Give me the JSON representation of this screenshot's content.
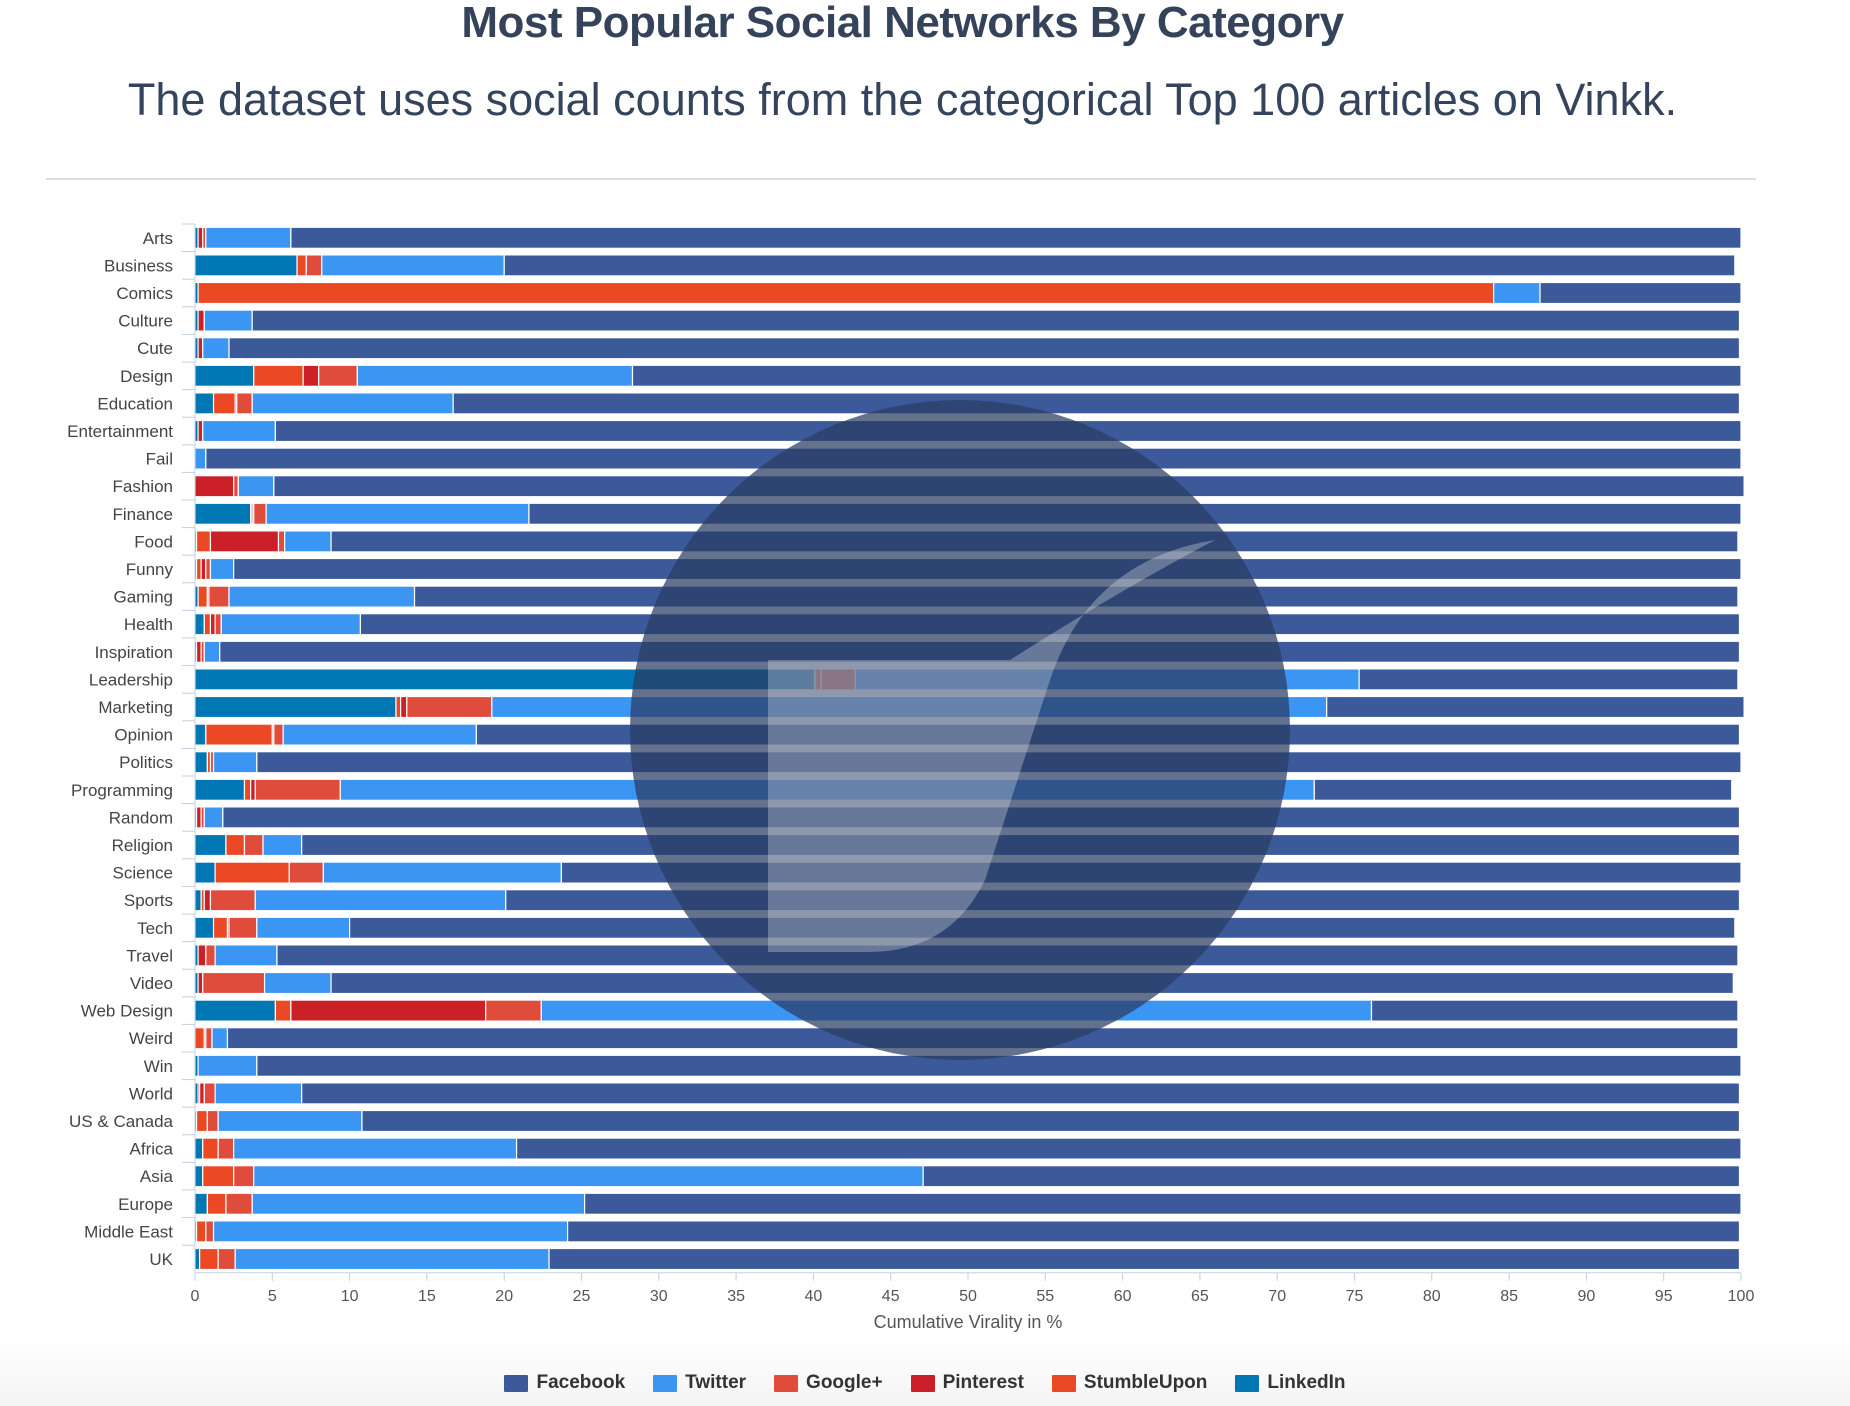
{
  "chart_data": {
    "type": "bar",
    "orientation": "horizontal",
    "stacked": true,
    "title": "Most Popular Social Networks By Category",
    "subtitle": "The dataset uses social counts from the categorical Top 100 articles on Vinkk.",
    "xlabel": "Cumulative Virality in %",
    "ylabel": "",
    "xlim": [
      0,
      100
    ],
    "x_ticks": [
      0,
      5,
      10,
      15,
      20,
      25,
      30,
      35,
      40,
      45,
      50,
      55,
      60,
      65,
      70,
      75,
      80,
      85,
      90,
      95,
      100
    ],
    "grid": false,
    "legend": "bottom",
    "stack_order": [
      "LinkedIn",
      "StumbleUpon",
      "Pinterest",
      "Google+",
      "Twitter",
      "Facebook"
    ],
    "categories": [
      "Arts",
      "Business",
      "Comics",
      "Culture",
      "Cute",
      "Design",
      "Education",
      "Entertainment",
      "Fail",
      "Fashion",
      "Finance",
      "Food",
      "Funny",
      "Gaming",
      "Health",
      "Inspiration",
      "Leadership",
      "Marketing",
      "Opinion",
      "Politics",
      "Programming",
      "Random",
      "Religion",
      "Science",
      "Sports",
      "Tech",
      "Travel",
      "Video",
      "Web Design",
      "Weird",
      "Win",
      "World",
      "US & Canada",
      "Africa",
      "Asia",
      "Europe",
      "Middle East",
      "UK"
    ],
    "series": [
      {
        "name": "Facebook",
        "color": "#3c5a9a",
        "values": [
          93.8,
          79.6,
          13.0,
          96.2,
          97.7,
          71.7,
          83.2,
          94.8,
          99.3,
          95.1,
          78.4,
          91.0,
          97.5,
          85.6,
          89.2,
          98.3,
          24.5,
          27.0,
          81.7,
          96.0,
          27.0,
          98.1,
          93.0,
          76.3,
          79.8,
          89.6,
          94.5,
          90.7,
          23.7,
          97.7,
          96.0,
          93.0,
          89.1,
          79.2,
          52.8,
          74.8,
          75.8,
          77.0
        ]
      },
      {
        "name": "Twitter",
        "color": "#3a95f3",
        "values": [
          5.5,
          11.8,
          3.0,
          3.1,
          1.7,
          17.8,
          13.0,
          4.7,
          0.7,
          2.3,
          17.0,
          3.0,
          1.5,
          12.0,
          9.0,
          1.0,
          32.6,
          54.0,
          12.5,
          2.8,
          63.0,
          1.2,
          2.5,
          15.4,
          16.2,
          6.0,
          4.0,
          4.3,
          53.7,
          1.0,
          3.8,
          5.6,
          9.3,
          18.3,
          43.3,
          21.5,
          22.9,
          20.3
        ]
      },
      {
        "name": "Google+",
        "color": "#e04c3c",
        "values": [
          0.2,
          1.0,
          0,
          0,
          0,
          2.5,
          1.0,
          0,
          0,
          0.3,
          0.8,
          0.4,
          0.3,
          1.3,
          0.4,
          0.2,
          2.2,
          5.5,
          0.6,
          0.2,
          5.5,
          0.2,
          1.2,
          2.2,
          2.9,
          1.8,
          0.6,
          4.0,
          3.6,
          0.4,
          0,
          0.7,
          0.7,
          1.0,
          1.3,
          1.7,
          0.5,
          1.1
        ]
      },
      {
        "name": "Pinterest",
        "color": "#cb2027",
        "values": [
          0.3,
          0,
          0,
          0.4,
          0.3,
          1.0,
          0.1,
          0.3,
          0,
          2.5,
          0.1,
          4.4,
          0.3,
          0.1,
          0.3,
          0.3,
          0,
          0.4,
          0.1,
          0,
          0.3,
          0.3,
          0,
          0,
          0.4,
          0.1,
          0.5,
          0.3,
          12.6,
          0.1,
          0,
          0.3,
          0,
          0,
          0,
          0,
          0,
          0
        ]
      },
      {
        "name": "StumbleUpon",
        "color": "#eb4924",
        "values": [
          0,
          0.6,
          83.8,
          0,
          0,
          3.2,
          1.4,
          0,
          0,
          0,
          0.1,
          0.9,
          0.3,
          0.6,
          0.4,
          0,
          0.4,
          0.3,
          4.3,
          0.2,
          0.4,
          0,
          1.2,
          4.8,
          0.2,
          0.9,
          0,
          0,
          1.0,
          0.6,
          0,
          0.1,
          0.7,
          1.0,
          2.0,
          1.2,
          0.6,
          1.2
        ]
      },
      {
        "name": "LinkedIn",
        "color": "#0077b5",
        "values": [
          0.2,
          6.6,
          0.2,
          0.2,
          0.2,
          3.8,
          1.2,
          0.2,
          0,
          0,
          3.6,
          0.1,
          0.1,
          0.2,
          0.6,
          0.1,
          40.1,
          13.0,
          0.7,
          0.8,
          3.2,
          0.1,
          2.0,
          1.3,
          0.4,
          1.2,
          0.2,
          0.2,
          5.2,
          0,
          0.2,
          0.2,
          0.1,
          0.5,
          0.5,
          0.8,
          0.1,
          0.3
        ]
      }
    ]
  }
}
